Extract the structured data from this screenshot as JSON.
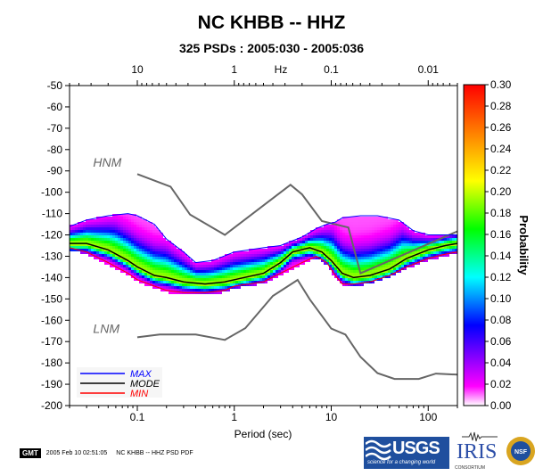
{
  "title": "NC KHBB -- HHZ",
  "subtitle": "325 PSDs : 2005:030 - 2005:036",
  "footer": {
    "gmt_badge": "GMT",
    "timestamp": "2005 Feb 10 02:51:05",
    "caption": "NC KHBB -- HHZ PSD PDF"
  },
  "logos": {
    "usgs_text": "USGS",
    "usgs_tagline": "science for a changing world",
    "iris_text": "IRIS",
    "iris_sub": "CONSORTIUM",
    "nsf_text": "NSF"
  },
  "colors": {
    "max_line": "#0000ff",
    "mode_line": "#000000",
    "min_line": "#ff0000",
    "noise_model": "#666666"
  },
  "chart_data": {
    "type": "heatmap",
    "xlabel": "Period (sec)",
    "x_scale": "log",
    "xlim": [
      0.02,
      200
    ],
    "x_ticks": [
      0.1,
      1,
      10,
      100
    ],
    "x_tick_labels": [
      "0.1",
      "1",
      "10",
      "100"
    ],
    "top_axis_label": "Hz",
    "top_ticks_hz": [
      10,
      1,
      0.1,
      0.01
    ],
    "top_tick_labels": [
      "10",
      "1",
      "0.1",
      "0.01"
    ],
    "ylim": [
      -200,
      -50
    ],
    "y_ticks": [
      -50,
      -60,
      -70,
      -80,
      -90,
      -100,
      -110,
      -120,
      -130,
      -140,
      -150,
      -160,
      -170,
      -180,
      -190,
      -200
    ],
    "colorbar": {
      "label": "Probability",
      "range": [
        0,
        0.3
      ],
      "ticks": [
        "0.30",
        "0.28",
        "0.26",
        "0.24",
        "0.22",
        "0.20",
        "0.18",
        "0.16",
        "0.14",
        "0.12",
        "0.10",
        "0.08",
        "0.06",
        "0.04",
        "0.02",
        "0.00"
      ],
      "colors": [
        "#ffffff",
        "#ff00ff",
        "#0000ff",
        "#00ffff",
        "#00ff00",
        "#ffff00",
        "#ff8000",
        "#ff0000"
      ]
    },
    "annotations": [
      {
        "text": "HNM",
        "x": 0.035,
        "y": -88
      },
      {
        "text": "LNM",
        "x": 0.035,
        "y": -166
      }
    ],
    "legend": {
      "position": "bottom-left",
      "entries": [
        "MAX",
        "MODE",
        "MIN"
      ]
    },
    "series": [
      {
        "name": "HNM",
        "x": [
          0.1,
          0.22,
          0.35,
          0.8,
          3.8,
          5,
          8,
          15,
          20,
          200
        ],
        "y": [
          -91.5,
          -97.4,
          -110.5,
          -120,
          -96.5,
          -101,
          -113.5,
          -116.5,
          -138,
          -118.3
        ]
      },
      {
        "name": "LNM",
        "x": [
          0.1,
          0.17,
          0.4,
          0.8,
          1.3,
          2.5,
          4.5,
          6,
          10,
          14,
          20,
          30,
          45,
          80,
          120,
          200
        ],
        "y": [
          -168,
          -166.7,
          -166.7,
          -169.2,
          -163.7,
          -148.6,
          -141.1,
          -150.2,
          -163.9,
          -166.7,
          -177.2,
          -184.8,
          -187.5,
          -187.5,
          -185,
          -185.5
        ]
      },
      {
        "name": "MAX",
        "x": [
          0.02,
          0.03,
          0.05,
          0.08,
          0.1,
          0.15,
          0.2,
          0.3,
          0.4,
          0.6,
          1,
          2,
          3,
          5,
          7,
          9,
          11,
          13,
          20,
          30,
          50,
          70,
          100,
          200
        ],
        "y": [
          -116,
          -113,
          -111,
          -110,
          -111,
          -115,
          -122,
          -128,
          -133,
          -132,
          -128,
          -126,
          -125,
          -121,
          -117,
          -115,
          -114,
          -112,
          -111,
          -111,
          -113,
          -118,
          -120,
          -120
        ]
      },
      {
        "name": "MODE",
        "x": [
          0.02,
          0.03,
          0.05,
          0.08,
          0.1,
          0.15,
          0.2,
          0.3,
          0.5,
          0.8,
          1,
          2,
          3,
          4,
          6,
          8,
          10,
          13,
          17,
          25,
          40,
          60,
          100,
          150,
          200
        ],
        "y": [
          -124,
          -124,
          -127,
          -132,
          -135,
          -139,
          -140,
          -142,
          -143,
          -142,
          -141,
          -138,
          -133,
          -128,
          -126,
          -128,
          -132,
          -138,
          -140,
          -139,
          -136,
          -131,
          -127,
          -125,
          -124
        ]
      },
      {
        "name": "MIN",
        "x": [
          0.02,
          0.03,
          0.05,
          0.08,
          0.1,
          0.15,
          0.2,
          0.3,
          0.5,
          0.8,
          1,
          2,
          3,
          5,
          7,
          9,
          11,
          13,
          17,
          25,
          40,
          60,
          100,
          150,
          200
        ],
        "y": [
          -126,
          -128,
          -133,
          -138,
          -141,
          -144,
          -146,
          -147,
          -147,
          -146,
          -144,
          -142,
          -138,
          -133,
          -130,
          -133,
          -139,
          -143,
          -143,
          -142,
          -139,
          -135,
          -131,
          -129,
          -128
        ]
      }
    ]
  }
}
